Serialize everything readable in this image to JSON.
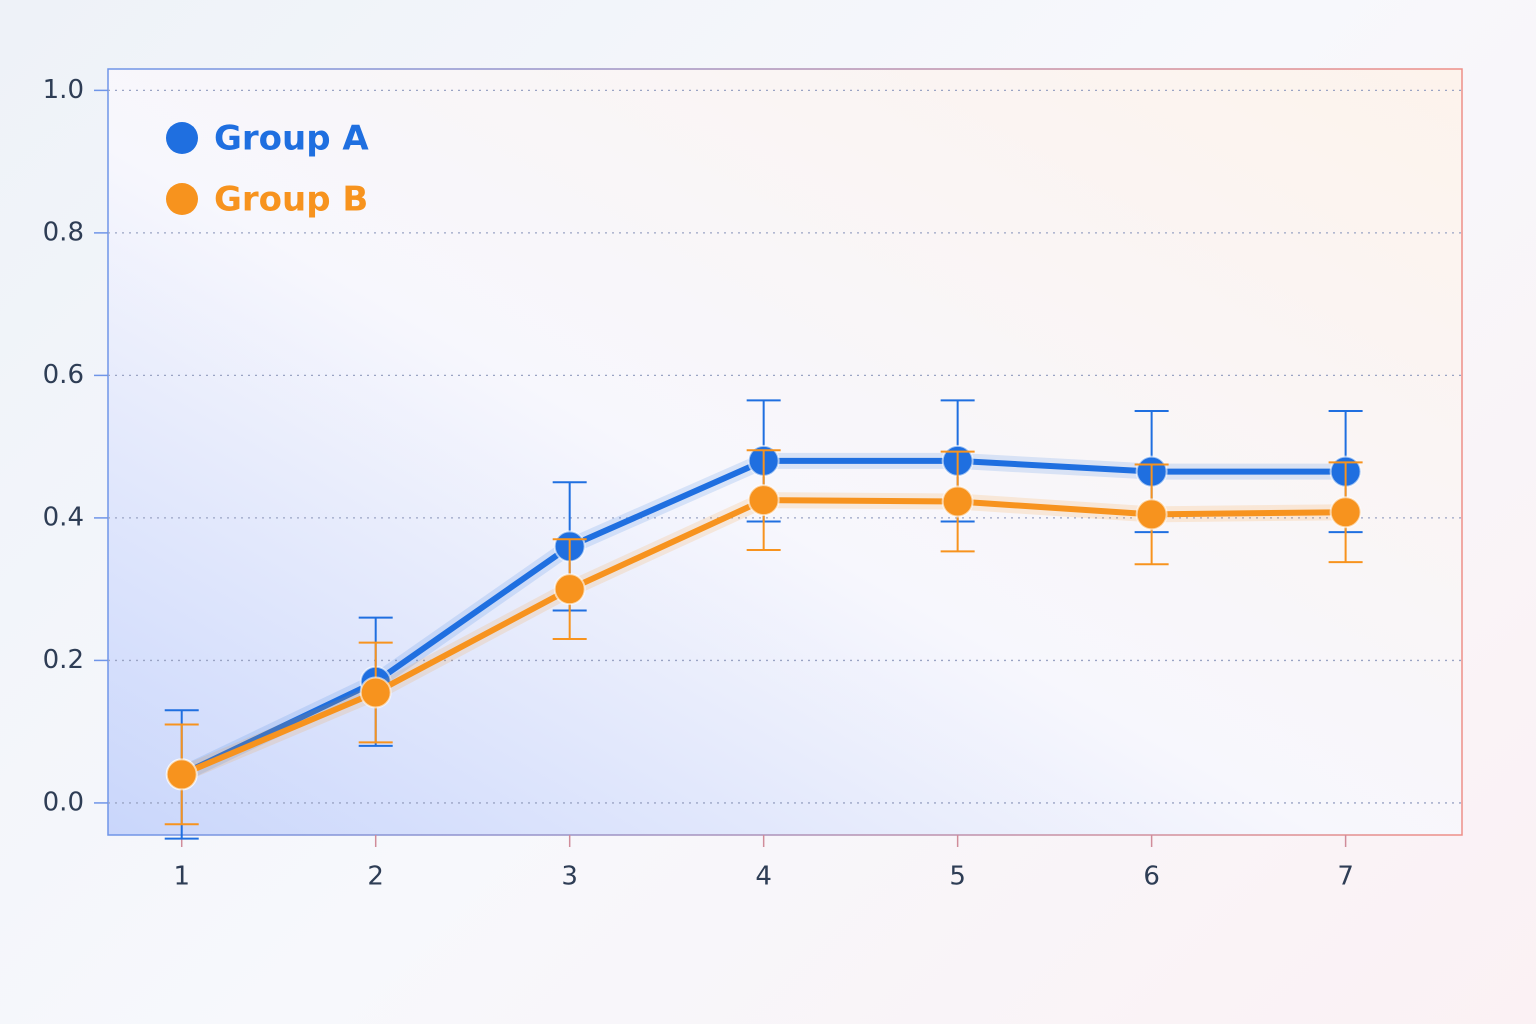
{
  "chart_data": {
    "type": "line",
    "x": [
      1,
      2,
      3,
      4,
      5,
      6,
      7
    ],
    "series": [
      {
        "name": "Group A",
        "color": "#1f6fe0",
        "values": [
          0.04,
          0.17,
          0.36,
          0.48,
          0.48,
          0.465,
          0.465
        ],
        "errors": [
          0.09,
          0.09,
          0.09,
          0.085,
          0.085,
          0.085,
          0.085
        ]
      },
      {
        "name": "Group B",
        "color": "#f7931e",
        "values": [
          0.04,
          0.155,
          0.3,
          0.425,
          0.423,
          0.405,
          0.408
        ],
        "errors": [
          0.07,
          0.07,
          0.07,
          0.07,
          0.07,
          0.07,
          0.07
        ]
      }
    ],
    "xlim": [
      0.62,
      7.6
    ],
    "xticks": [
      1,
      2,
      3,
      4,
      5,
      6,
      7
    ],
    "ylim": [
      -0.045,
      1.03
    ],
    "yticks": [
      {
        "value": 0,
        "label": "0.0"
      },
      0.2,
      0.4,
      0.6,
      0.8,
      {
        "value": 1,
        "label": "1.0"
      }
    ],
    "grid": true,
    "legend": "upper left"
  }
}
